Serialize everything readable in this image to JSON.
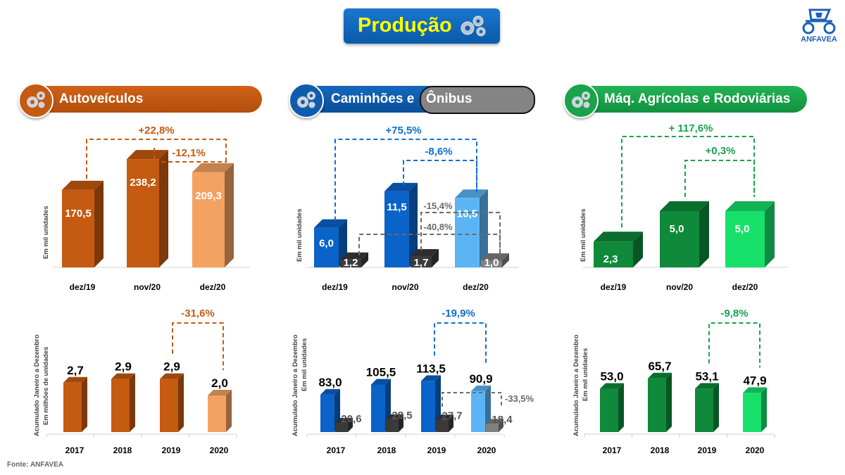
{
  "page": {
    "title": "Produção",
    "logo_text": "ANFAVEA",
    "footer": "Fonte: ANFAVEA"
  },
  "sections": [
    {
      "title": "Autoveículos",
      "color": "#c55a11"
    },
    {
      "title_part1": "Caminhões e",
      "title_part2": "Ônibus",
      "color": "#0f5cae",
      "highlight_color": "#848484"
    },
    {
      "title": "Máq. Agrícolas e Rodoviárias",
      "color": "#1aa34a"
    }
  ],
  "axis_labels": {
    "monthly": "Em mil unidades",
    "cumulative_line1": "Acumulado Janeiro a Dezembro",
    "cumulative_line2_auto": "Em milhões de unidades",
    "cumulative_line2_other": "Em mil unidades"
  },
  "chart_data": [
    {
      "id": "auto_monthly",
      "type": "bar",
      "title": "Autoveículos",
      "ylabel": "Em mil unidades",
      "categories": [
        "dez/19",
        "nov/20",
        "dez/20"
      ],
      "series": [
        {
          "name": "Autoveículos",
          "values": [
            170.5,
            238.2,
            209.3
          ],
          "labels": [
            "170,5",
            "238,2",
            "209,3"
          ],
          "colors": [
            "#c55a11",
            "#c55a11",
            "#f4a262"
          ]
        }
      ],
      "annotations": [
        "+22,8%",
        "-12,1%"
      ]
    },
    {
      "id": "trucks_monthly",
      "type": "bar",
      "title": "Caminhões e Ônibus",
      "ylabel": "Em mil unidades",
      "categories": [
        "dez/19",
        "nov/20",
        "dez/20"
      ],
      "series": [
        {
          "name": "Caminhões",
          "values": [
            6.0,
            11.5,
            10.5
          ],
          "labels": [
            "6,0",
            "11,5",
            "10,5"
          ],
          "colors": [
            "#0a63c8",
            "#0a63c8",
            "#5bb5f5"
          ]
        },
        {
          "name": "Ônibus",
          "values": [
            1.2,
            1.7,
            1.0
          ],
          "labels": [
            "1,2",
            "1,7",
            "1,0"
          ],
          "colors": [
            "#3a3a3a",
            "#3a3a3a",
            "#808080"
          ]
        }
      ],
      "annotations": [
        "+75,5%",
        "-8,6%",
        "-15,4%",
        "-40,8%"
      ]
    },
    {
      "id": "agri_monthly",
      "type": "bar",
      "title": "Máq. Agrícolas e Rodoviárias",
      "ylabel": "Em mil unidades",
      "categories": [
        "dez/19",
        "nov/20",
        "dez/20"
      ],
      "series": [
        {
          "name": "Máq. Agrícolas e Rodoviárias",
          "values": [
            2.3,
            5.0,
            5.0
          ],
          "labels": [
            "2,3",
            "5,0",
            "5,0"
          ],
          "colors": [
            "#0e8a3a",
            "#0e8a3a",
            "#17e06a"
          ]
        }
      ],
      "annotations": [
        "+ 117,6%",
        "+0,3%"
      ]
    },
    {
      "id": "auto_cumulative",
      "type": "bar",
      "title": "Autoveículos acumulado",
      "ylabel": "Acumulado Janeiro a Dezembro / Em milhões de unidades",
      "categories": [
        "2017",
        "2018",
        "2019",
        "2020"
      ],
      "series": [
        {
          "name": "Autoveículos",
          "values": [
            2.7,
            2.9,
            2.9,
            2.0
          ],
          "labels": [
            "2,7",
            "2,9",
            "2,9",
            "2,0"
          ],
          "colors": [
            "#c55a11",
            "#c55a11",
            "#c55a11",
            "#f4a262"
          ]
        }
      ],
      "annotations": [
        "-31,6%"
      ]
    },
    {
      "id": "trucks_cumulative",
      "type": "bar",
      "title": "Caminhões e Ônibus acumulado",
      "ylabel": "Acumulado Janeiro a Dezembro / Em mil unidades",
      "categories": [
        "2017",
        "2018",
        "2019",
        "2020"
      ],
      "series": [
        {
          "name": "Caminhões",
          "values": [
            83.0,
            105.5,
            113.5,
            90.9
          ],
          "labels": [
            "83,0",
            "105,5",
            "113,5",
            "90,9"
          ],
          "colors": [
            "#0a63c8",
            "#0a63c8",
            "#0a63c8",
            "#5bb5f5"
          ]
        },
        {
          "name": "Ônibus",
          "values": [
            20.6,
            28.5,
            27.7,
            18.4
          ],
          "labels": [
            "20,6",
            "28,5",
            "27,7",
            "18,4"
          ],
          "colors": [
            "#3a3a3a",
            "#3a3a3a",
            "#3a3a3a",
            "#808080"
          ]
        }
      ],
      "annotations": [
        "-19,9%",
        "-33,5%"
      ]
    },
    {
      "id": "agri_cumulative",
      "type": "bar",
      "title": "Máq. Agrícolas e Rodoviárias acumulado",
      "ylabel": "Acumulado Janeiro a Dezembro / Em mil unidades",
      "categories": [
        "2017",
        "2018",
        "2019",
        "2020"
      ],
      "series": [
        {
          "name": "Máq. Agrícolas e Rodoviárias",
          "values": [
            53.0,
            65.7,
            53.1,
            47.9
          ],
          "labels": [
            "53,0",
            "65,7",
            "53,1",
            "47,9"
          ],
          "colors": [
            "#0e8a3a",
            "#0e8a3a",
            "#0e8a3a",
            "#17e06a"
          ]
        }
      ],
      "annotations": [
        "-9,8%"
      ]
    }
  ]
}
